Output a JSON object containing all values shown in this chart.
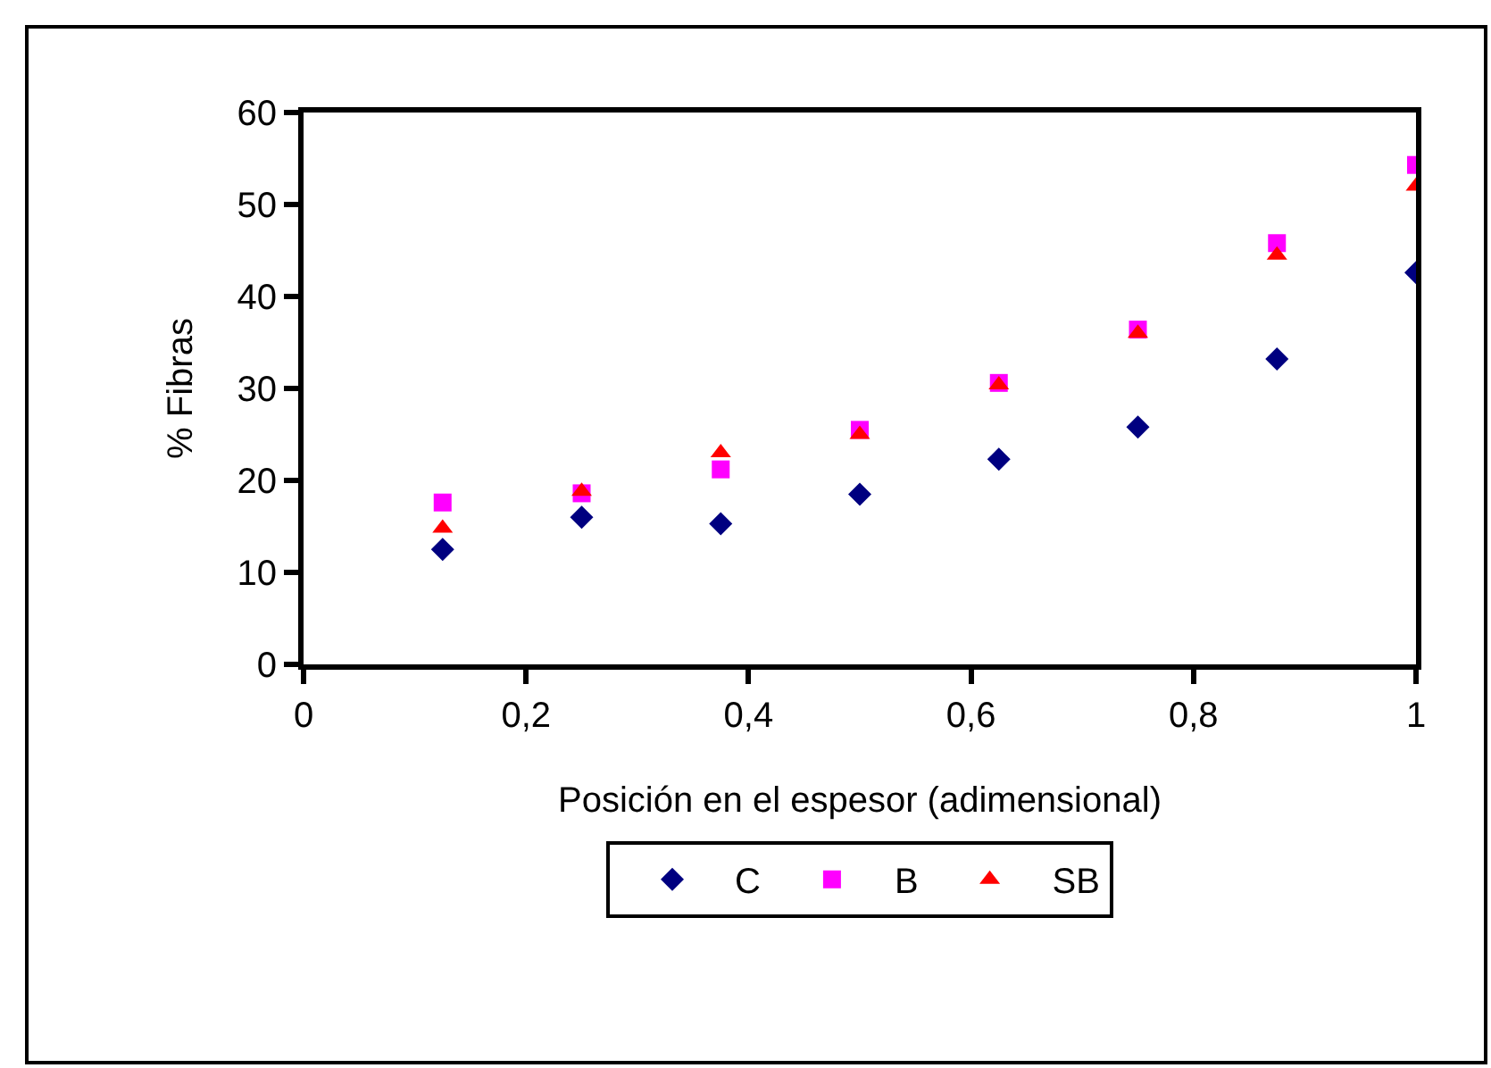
{
  "chart_data": {
    "type": "scatter",
    "xlabel": "Posición en el espesor (adimensional)",
    "ylabel": "% Fibras",
    "x": [
      0.125,
      0.25,
      0.375,
      0.5,
      0.625,
      0.75,
      0.875,
      1
    ],
    "series": [
      {
        "name": "C",
        "color": "#000080",
        "marker": "diamond",
        "values": [
          12.5,
          16,
          15.3,
          18.5,
          22.3,
          25.8,
          33.2,
          42.6
        ]
      },
      {
        "name": "B",
        "color": "#ff00ff",
        "marker": "square",
        "values": [
          17.6,
          18.6,
          21.2,
          25.5,
          30.6,
          36.4,
          45.8,
          54.3
        ]
      },
      {
        "name": "SB",
        "color": "#ff0000",
        "marker": "triangle",
        "values": [
          14.8,
          18.8,
          23.0,
          25.0,
          30.4,
          36.0,
          44.5,
          52.0
        ]
      }
    ],
    "xlim": [
      0,
      1
    ],
    "xticks": [
      0,
      {
        "value": 0.2,
        "label": "0,2"
      },
      {
        "value": 0.4,
        "label": "0,4"
      },
      {
        "value": 0.6,
        "label": "0,6"
      },
      {
        "value": 0.8,
        "label": "0,8"
      },
      1
    ],
    "ylim": [
      0,
      60
    ],
    "yticks": [
      0,
      10,
      20,
      30,
      40,
      50,
      60
    ],
    "grid": false,
    "legend": "bottom"
  }
}
